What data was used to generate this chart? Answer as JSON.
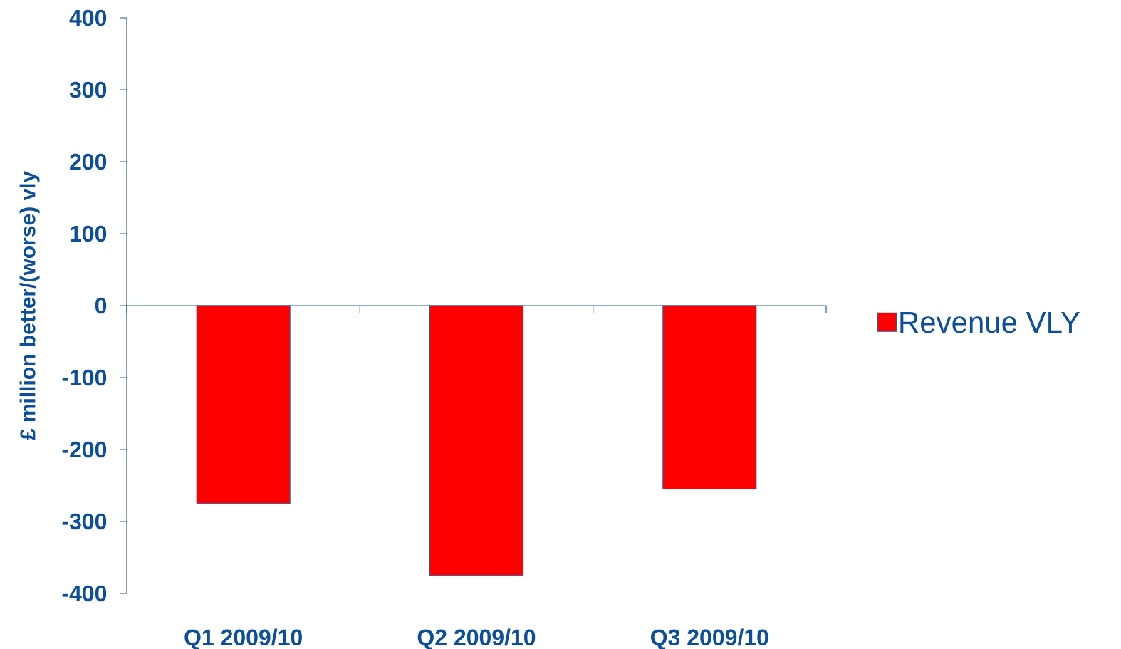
{
  "chart_data": {
    "type": "bar",
    "ylabel": "£ million better/(worse) vly",
    "categories": [
      "Q1 2009/10",
      "Q2 2009/10",
      "Q3 2009/10"
    ],
    "series": [
      {
        "name": "Revenue VLY",
        "color": "#ff0000",
        "values": [
          -275,
          -375,
          -255
        ]
      }
    ],
    "ylim": [
      -400,
      400
    ],
    "yticks": [
      -400,
      -300,
      -200,
      -100,
      0,
      100,
      200,
      300,
      400
    ],
    "ref_lines": [
      {
        "axis": "y",
        "value": 0,
        "color": "#1f5aa6"
      }
    ],
    "grid": false,
    "legend": "right"
  }
}
